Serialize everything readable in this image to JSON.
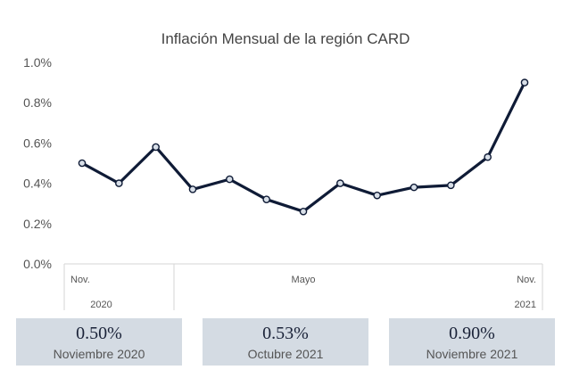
{
  "chart_data": {
    "type": "line",
    "title": "Inflación Mensual de la región CARD",
    "x": [
      "2020-11",
      "2020-12",
      "2021-01",
      "2021-02",
      "2021-03",
      "2021-04",
      "2021-05",
      "2021-06",
      "2021-07",
      "2021-08",
      "2021-09",
      "2021-10",
      "2021-11"
    ],
    "series": [
      {
        "values": [
          0.5,
          0.4,
          0.58,
          0.37,
          0.42,
          0.32,
          0.26,
          0.4,
          0.34,
          0.38,
          0.39,
          0.53,
          0.9
        ]
      }
    ],
    "yticks": [
      "0.0%",
      "0.2%",
      "0.4%",
      "0.6%",
      "0.8%",
      "1.0%"
    ],
    "ylim": [
      0,
      1.0
    ],
    "xlabel": "",
    "ylabel": "",
    "category_labels": [
      {
        "index": 0,
        "text": "Nov."
      },
      {
        "index": 6,
        "text": "Mayo"
      },
      {
        "index": 12,
        "text": "Nov."
      }
    ],
    "year_labels": [
      {
        "index": 0,
        "text": "2020"
      },
      {
        "index": 12,
        "text": "2021"
      }
    ],
    "grid": false,
    "line_color": "#0f1b36",
    "marker_fill": "#d8dfe8"
  },
  "summary_cards": [
    {
      "value": "0.50%",
      "label": "Noviembre 2020"
    },
    {
      "value": "0.53%",
      "label": "Octubre 2021"
    },
    {
      "value": "0.90%",
      "label": "Noviembre 2021"
    }
  ],
  "colors": {
    "card_bg": "#d4dbe3",
    "value_text": "#1a2238"
  }
}
